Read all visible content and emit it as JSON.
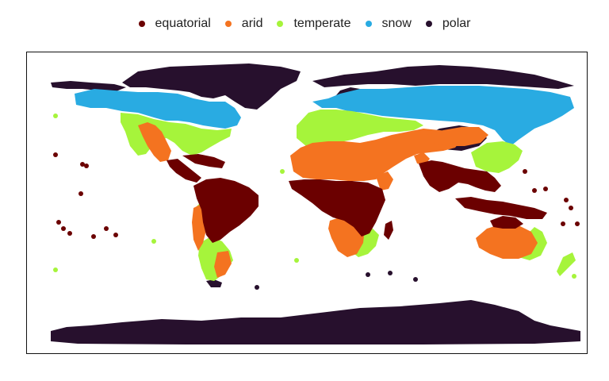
{
  "legend": {
    "items": [
      {
        "label": "equatorial",
        "color": "#6b0000"
      },
      {
        "label": "arid",
        "color": "#f47320"
      },
      {
        "label": "temperate",
        "color": "#a6f43b"
      },
      {
        "label": "snow",
        "color": "#29abe2"
      },
      {
        "label": "polar",
        "color": "#27102d"
      }
    ]
  },
  "chart_data": {
    "type": "scatter",
    "title": "",
    "xlabel": "",
    "ylabel": "",
    "grid": false,
    "legend_position": "top",
    "xlim": [
      -180,
      180
    ],
    "ylim": [
      -90,
      90
    ],
    "series": [
      {
        "name": "equatorial",
        "color": "#6b0000"
      },
      {
        "name": "arid",
        "color": "#f47320"
      },
      {
        "name": "temperate",
        "color": "#a6f43b"
      },
      {
        "name": "snow",
        "color": "#29abe2"
      },
      {
        "name": "polar",
        "color": "#27102d"
      }
    ]
  }
}
